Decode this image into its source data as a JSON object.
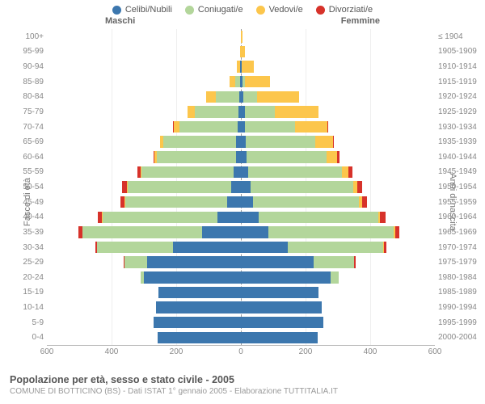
{
  "legend": [
    {
      "label": "Celibi/Nubili",
      "color": "#3c77ae"
    },
    {
      "label": "Coniugati/e",
      "color": "#b3d69b"
    },
    {
      "label": "Vedovi/e",
      "color": "#fcc64c"
    },
    {
      "label": "Divorziati/e",
      "color": "#d7322a"
    }
  ],
  "headers": {
    "male": "Maschi",
    "female": "Femmine"
  },
  "left_axis_title": "Fasce di età",
  "right_axis_title": "Anni di nascita",
  "x_axis": {
    "max": 600,
    "ticks": [
      600,
      400,
      200,
      0,
      200,
      400,
      600
    ]
  },
  "colors": {
    "single": "#3c77ae",
    "married": "#b3d69b",
    "widowed": "#fcc64c",
    "divorced": "#d7322a",
    "grid": "#eeeeee",
    "axis": "#bbbbbb",
    "center": "#999999",
    "text": "#888888",
    "bg": "#ffffff"
  },
  "fontsize": {
    "label": 10,
    "legend": 11,
    "title": 12.5,
    "subtitle": 10,
    "axis_title": 11
  },
  "rows": [
    {
      "age": "100+",
      "birth": "≤ 1904",
      "m": [
        0,
        0,
        0,
        0
      ],
      "f": [
        0,
        0,
        4,
        0
      ]
    },
    {
      "age": "95-99",
      "birth": "1905-1909",
      "m": [
        0,
        0,
        3,
        0
      ],
      "f": [
        0,
        0,
        12,
        0
      ]
    },
    {
      "age": "90-94",
      "birth": "1910-1914",
      "m": [
        2,
        0,
        10,
        0
      ],
      "f": [
        3,
        0,
        38,
        0
      ]
    },
    {
      "age": "85-89",
      "birth": "1915-1919",
      "m": [
        3,
        14,
        18,
        0
      ],
      "f": [
        6,
        6,
        78,
        0
      ]
    },
    {
      "age": "80-84",
      "birth": "1920-1924",
      "m": [
        6,
        72,
        30,
        0
      ],
      "f": [
        8,
        42,
        130,
        0
      ]
    },
    {
      "age": "75-79",
      "birth": "1925-1929",
      "m": [
        8,
        135,
        22,
        0
      ],
      "f": [
        12,
        92,
        135,
        0
      ]
    },
    {
      "age": "70-74",
      "birth": "1930-1934",
      "m": [
        10,
        180,
        18,
        2
      ],
      "f": [
        12,
        155,
        100,
        3
      ]
    },
    {
      "age": "65-69",
      "birth": "1935-1939",
      "m": [
        14,
        225,
        10,
        2
      ],
      "f": [
        14,
        215,
        55,
        4
      ]
    },
    {
      "age": "60-64",
      "birth": "1940-1944",
      "m": [
        16,
        245,
        6,
        4
      ],
      "f": [
        18,
        248,
        32,
        6
      ]
    },
    {
      "age": "55-59",
      "birth": "1945-1949",
      "m": [
        22,
        285,
        4,
        10
      ],
      "f": [
        22,
        290,
        20,
        12
      ]
    },
    {
      "age": "50-54",
      "birth": "1950-1954",
      "m": [
        30,
        320,
        3,
        14
      ],
      "f": [
        30,
        318,
        12,
        16
      ]
    },
    {
      "age": "45-49",
      "birth": "1955-1959",
      "m": [
        42,
        315,
        2,
        14
      ],
      "f": [
        38,
        328,
        8,
        16
      ]
    },
    {
      "age": "40-44",
      "birth": "1960-1964",
      "m": [
        72,
        355,
        2,
        14
      ],
      "f": [
        55,
        370,
        6,
        16
      ]
    },
    {
      "age": "35-39",
      "birth": "1965-1969",
      "m": [
        120,
        370,
        1,
        12
      ],
      "f": [
        85,
        388,
        4,
        14
      ]
    },
    {
      "age": "30-34",
      "birth": "1970-1974",
      "m": [
        210,
        235,
        0,
        6
      ],
      "f": [
        145,
        295,
        2,
        8
      ]
    },
    {
      "age": "25-29",
      "birth": "1975-1979",
      "m": [
        290,
        70,
        0,
        2
      ],
      "f": [
        225,
        125,
        0,
        4
      ]
    },
    {
      "age": "20-24",
      "birth": "1980-1984",
      "m": [
        300,
        10,
        0,
        0
      ],
      "f": [
        278,
        25,
        0,
        0
      ]
    },
    {
      "age": "15-19",
      "birth": "1985-1989",
      "m": [
        255,
        0,
        0,
        0
      ],
      "f": [
        240,
        0,
        0,
        0
      ]
    },
    {
      "age": "10-14",
      "birth": "1990-1994",
      "m": [
        262,
        0,
        0,
        0
      ],
      "f": [
        250,
        0,
        0,
        0
      ]
    },
    {
      "age": "5-9",
      "birth": "1995-1999",
      "m": [
        270,
        0,
        0,
        0
      ],
      "f": [
        255,
        0,
        0,
        0
      ]
    },
    {
      "age": "0-4",
      "birth": "2000-2004",
      "m": [
        258,
        0,
        0,
        0
      ],
      "f": [
        238,
        0,
        0,
        0
      ]
    }
  ],
  "title": "Popolazione per età, sesso e stato civile - 2005",
  "subtitle": "COMUNE DI BOTTICINO (BS) - Dati ISTAT 1° gennaio 2005 - Elaborazione TUTTITALIA.IT"
}
